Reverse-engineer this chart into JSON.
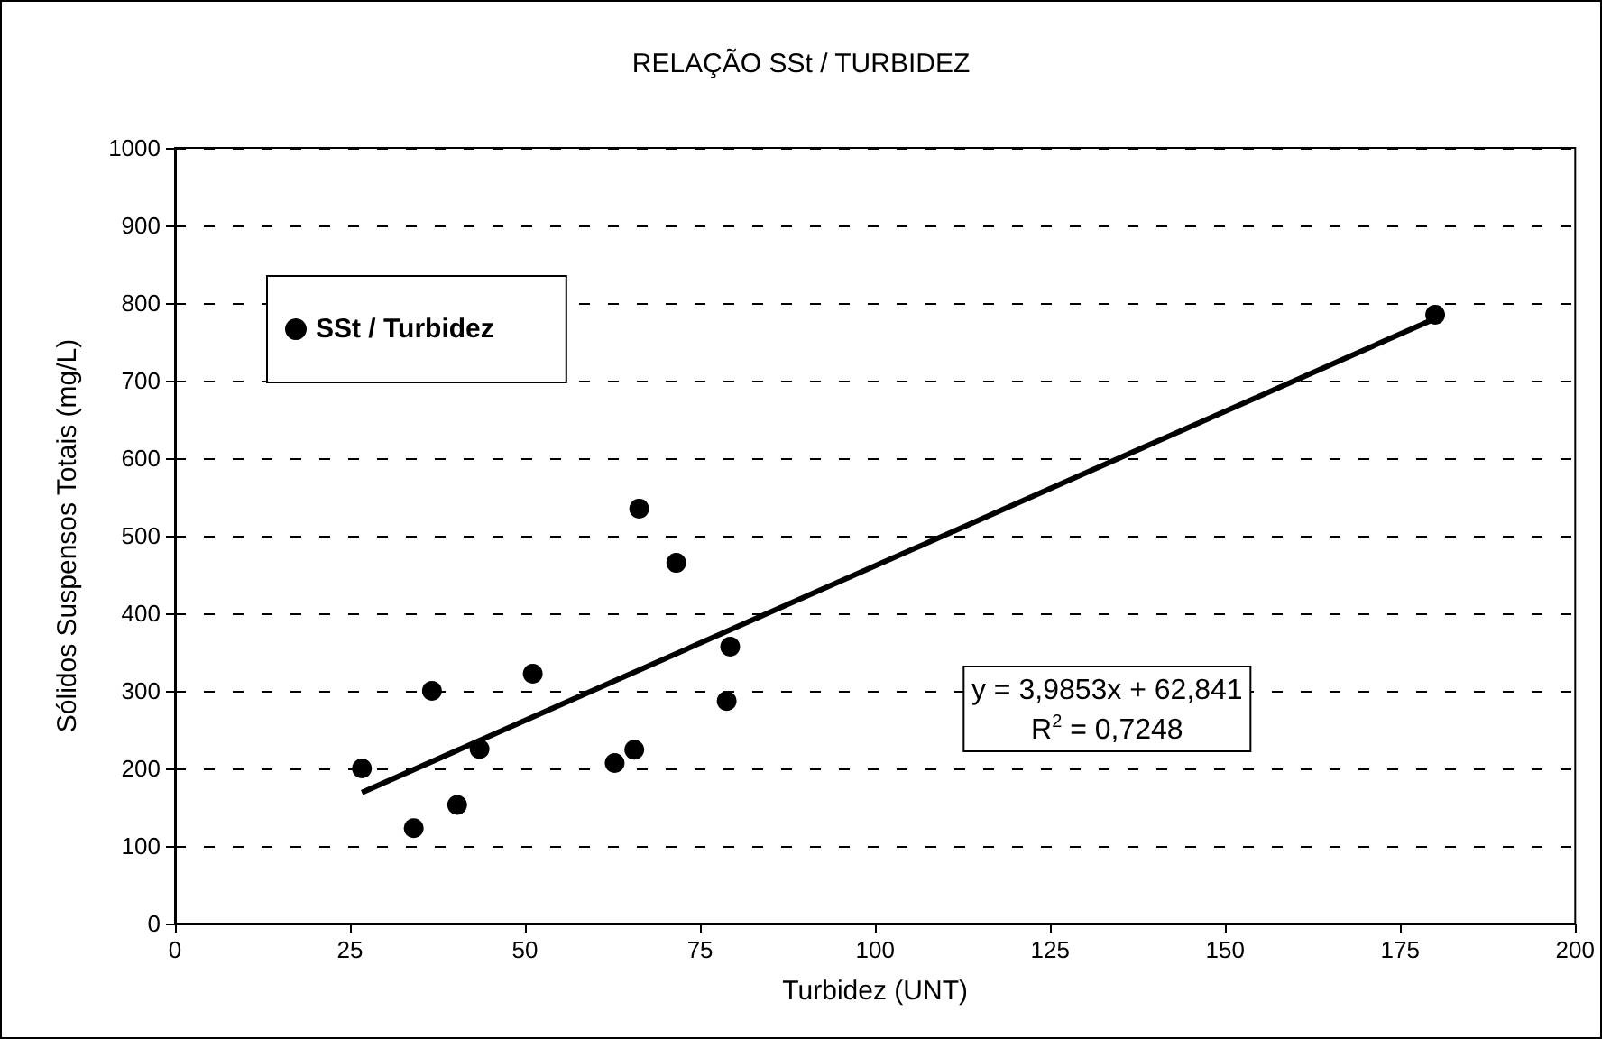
{
  "chart_data": {
    "type": "scatter",
    "title": "RELAÇÃO SSt / TURBIDEZ",
    "xlabel": "Turbidez (UNT)",
    "ylabel": "Sólidos Suspensos Totais (mg/L)",
    "annotations": [
      "y = 3,9853x + 62,841",
      "R$^{2}$ = 0,7248"
    ],
    "xlim": [
      0,
      200
    ],
    "xticks": [
      0,
      25,
      50,
      75,
      100,
      125,
      150,
      175,
      200
    ],
    "ylim": [
      0,
      1000
    ],
    "yticks": [
      0,
      100,
      200,
      300,
      400,
      500,
      600,
      700,
      800,
      900,
      1000
    ],
    "grid": "y",
    "legend": "top left",
    "series": [
      {
        "name": "SSt / Turbidez",
        "color": "#000000",
        "marker": "circle",
        "x": [
          26.7,
          34.1,
          36.7,
          40.3,
          43.5,
          51.1,
          62.8,
          65.6,
          66.3,
          71.6,
          79.3,
          78.8,
          180
        ],
        "values": [
          200,
          123,
          300,
          153,
          225,
          322,
          207,
          224,
          535,
          465,
          357,
          287,
          785
        ]
      },
      {
        "type": "line",
        "color": "#000000",
        "marker": "none",
        "x": [
          26.7,
          180
        ],
        "values": [
          169,
          780
        ]
      }
    ]
  }
}
